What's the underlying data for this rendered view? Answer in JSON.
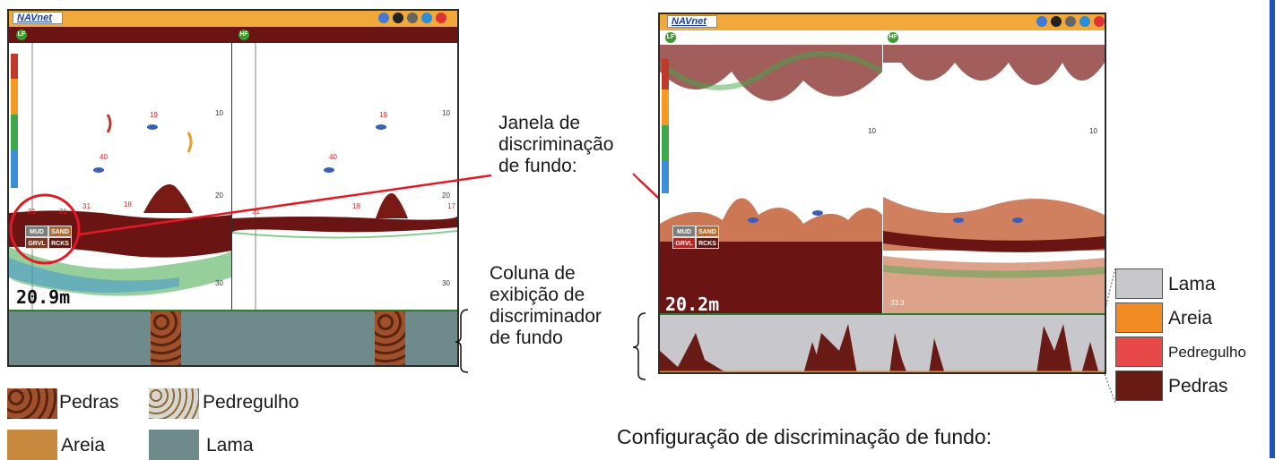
{
  "left_display": {
    "brand": "NAVnet",
    "left_pane_badge": "LF",
    "right_pane_badge": "HF",
    "depth_readout": "20.9m",
    "depth_ticks": [
      "10",
      "20",
      "30"
    ],
    "fish_depths": [
      "19",
      "40",
      "31",
      "31",
      "31",
      "18",
      "19",
      "40",
      "31",
      "18",
      "17"
    ],
    "bottom_labels": {
      "mud": "MUD",
      "sand": "SAND",
      "gravel": "GRVL",
      "rocks": "RCKS"
    }
  },
  "right_display": {
    "brand": "NAVnet",
    "left_pane_badge": "LF",
    "right_pane_badge": "HF",
    "depth_readout": "20.2m",
    "depth_ticks": [
      "10",
      "10"
    ],
    "small_readout": "33.3",
    "bottom_labels": {
      "mud": "MUD",
      "sand": "SAND",
      "gravel": "GRVL",
      "rocks": "RCKS"
    }
  },
  "annotations": {
    "window_label": [
      "Janela de",
      "discriminação",
      "de fundo:"
    ],
    "column_label": [
      "Coluna de",
      "exibição de",
      "discriminador",
      "de fundo"
    ],
    "config_title": "Configuração de discriminação de fundo:"
  },
  "left_legend": {
    "rocks": "Pedras",
    "gravel": "Pedregulho",
    "sand": "Areia",
    "mud": "Lama"
  },
  "right_legend": [
    {
      "label": "Lama",
      "color": "#c8c8cc"
    },
    {
      "label": "Areia",
      "color": "#f28a22"
    },
    {
      "label": "Pedregulho",
      "color": "#e84848"
    },
    {
      "label": "Pedras",
      "color": "#6a1a14"
    }
  ],
  "colors": {
    "topbar": "#f2a93b",
    "header": "#6a1414",
    "echo_bottom": "#6a1414",
    "annotation_line": "#e01b24",
    "frame_blue": "#1c55b3"
  }
}
